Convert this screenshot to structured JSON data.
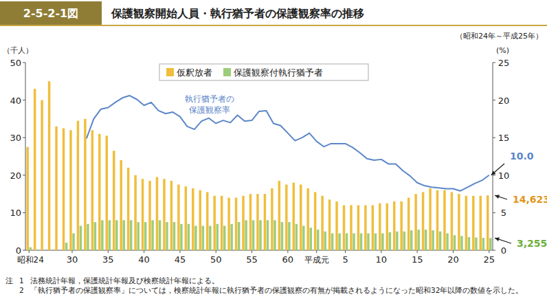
{
  "chart_data": {
    "type": "bar",
    "figure_number": "2-5-2-1図",
    "title": "保護観察開始人員・執行猶予者の保護観察率の推移",
    "subtitle": "（昭和24年～平成25年）",
    "y_label": "（千人）",
    "y2_label": "(%)",
    "categories": [
      "昭和24",
      null,
      null,
      null,
      null,
      null,
      "30",
      null,
      null,
      null,
      null,
      "35",
      null,
      null,
      null,
      null,
      "40",
      null,
      null,
      null,
      null,
      "45",
      null,
      null,
      null,
      null,
      "50",
      null,
      null,
      null,
      null,
      "55",
      null,
      null,
      null,
      null,
      "60",
      null,
      null,
      null,
      "平成元",
      null,
      null,
      null,
      "5",
      null,
      null,
      null,
      null,
      "10",
      null,
      null,
      null,
      null,
      "15",
      null,
      null,
      null,
      null,
      "20",
      null,
      null,
      null,
      null,
      "25"
    ],
    "series": [
      {
        "name": "仮釈放者",
        "type": "bar",
        "color": "#efbe3c",
        "values": [
          27.5,
          43,
          40,
          45,
          33,
          32.5,
          32,
          34.5,
          35,
          32,
          31,
          30.5,
          26.5,
          24,
          22,
          20,
          19,
          18.5,
          19.5,
          19,
          18.5,
          17.5,
          17,
          16.5,
          16,
          15.5,
          14.5,
          14.5,
          14,
          14,
          14.5,
          15,
          15,
          15,
          16.5,
          18.5,
          17.5,
          18,
          17.5,
          16.5,
          15.5,
          14.5,
          13.5,
          13,
          12,
          12,
          12,
          12,
          12,
          12.5,
          12.5,
          13,
          13,
          14,
          15,
          15.5,
          16.5,
          16,
          16,
          15.5,
          15,
          14.5,
          14.5,
          14.5,
          14.623
        ]
      },
      {
        "name": "保護観察付執行猶予者",
        "type": "bar",
        "color": "#9dcd7a",
        "values": [
          0.8,
          null,
          null,
          null,
          null,
          2,
          4.5,
          6.5,
          7,
          7.5,
          8,
          8,
          8,
          8,
          8,
          7.5,
          7.5,
          8,
          8,
          7.5,
          7.5,
          7,
          7,
          6.5,
          6.5,
          6.5,
          7,
          6.5,
          7,
          7.5,
          8,
          8,
          8,
          8,
          8,
          7.5,
          7.5,
          7,
          6.5,
          6,
          5.5,
          5,
          4.5,
          4.5,
          4.5,
          4.5,
          4.5,
          4.5,
          4.5,
          4.5,
          4.8,
          5,
          5,
          5.3,
          5.5,
          5.5,
          5.3,
          5,
          4.5,
          4,
          3.8,
          3.5,
          3.4,
          3.3,
          3.255
        ]
      },
      {
        "name": "執行猶予者の保護観察率",
        "type": "line",
        "axis": "y2",
        "color": "#5b86c8",
        "values": [
          null,
          null,
          null,
          null,
          null,
          null,
          null,
          null,
          14.9,
          17.5,
          18.8,
          19,
          19.7,
          20.3,
          20.6,
          20.1,
          19.3,
          19.7,
          18.6,
          18.2,
          18.4,
          17.8,
          16.5,
          16.1,
          17.2,
          17.6,
          16.9,
          17.3,
          17,
          18,
          17.2,
          17.3,
          18.5,
          18.6,
          16.9,
          16.6,
          15.6,
          14.6,
          15,
          15.6,
          14.5,
          13.8,
          14.2,
          14.2,
          14.2,
          13.7,
          13,
          12.2,
          12,
          12.1,
          11.5,
          11.5,
          10.6,
          9.9,
          9,
          8.6,
          8.4,
          8.3,
          8.2,
          8.2,
          7.9,
          8.4,
          8.9,
          9.3,
          10
        ]
      }
    ],
    "ylim": [
      0,
      50
    ],
    "yticks": [
      0,
      10,
      20,
      30,
      40,
      50
    ],
    "y2lim": [
      0,
      25
    ],
    "y2ticks": [
      0,
      5,
      10,
      15,
      20,
      25
    ],
    "grid": false,
    "legend": "top",
    "series_label": {
      "series": 2,
      "lines": [
        "執行猶予者の",
        "保護観察率"
      ]
    },
    "annotations": [
      {
        "series": 2,
        "index": 64,
        "value": 10,
        "label": "10.0"
      },
      {
        "series": 0,
        "index": 64,
        "value": 14.623,
        "label": "14,623"
      },
      {
        "series": 1,
        "index": 64,
        "value": 3.255,
        "label": "3,255"
      }
    ],
    "notes_label": "注",
    "notes": [
      {
        "number": "1",
        "text": "法務統計年報，保護統計年報及び検察統計年報による。"
      },
      {
        "number": "2",
        "text": "「執行猶予者の保護観察率」については，検察統計年報に執行猶予者の保護観察の有無が掲載されるようになった昭和32年以降の数値を示した。"
      }
    ]
  }
}
